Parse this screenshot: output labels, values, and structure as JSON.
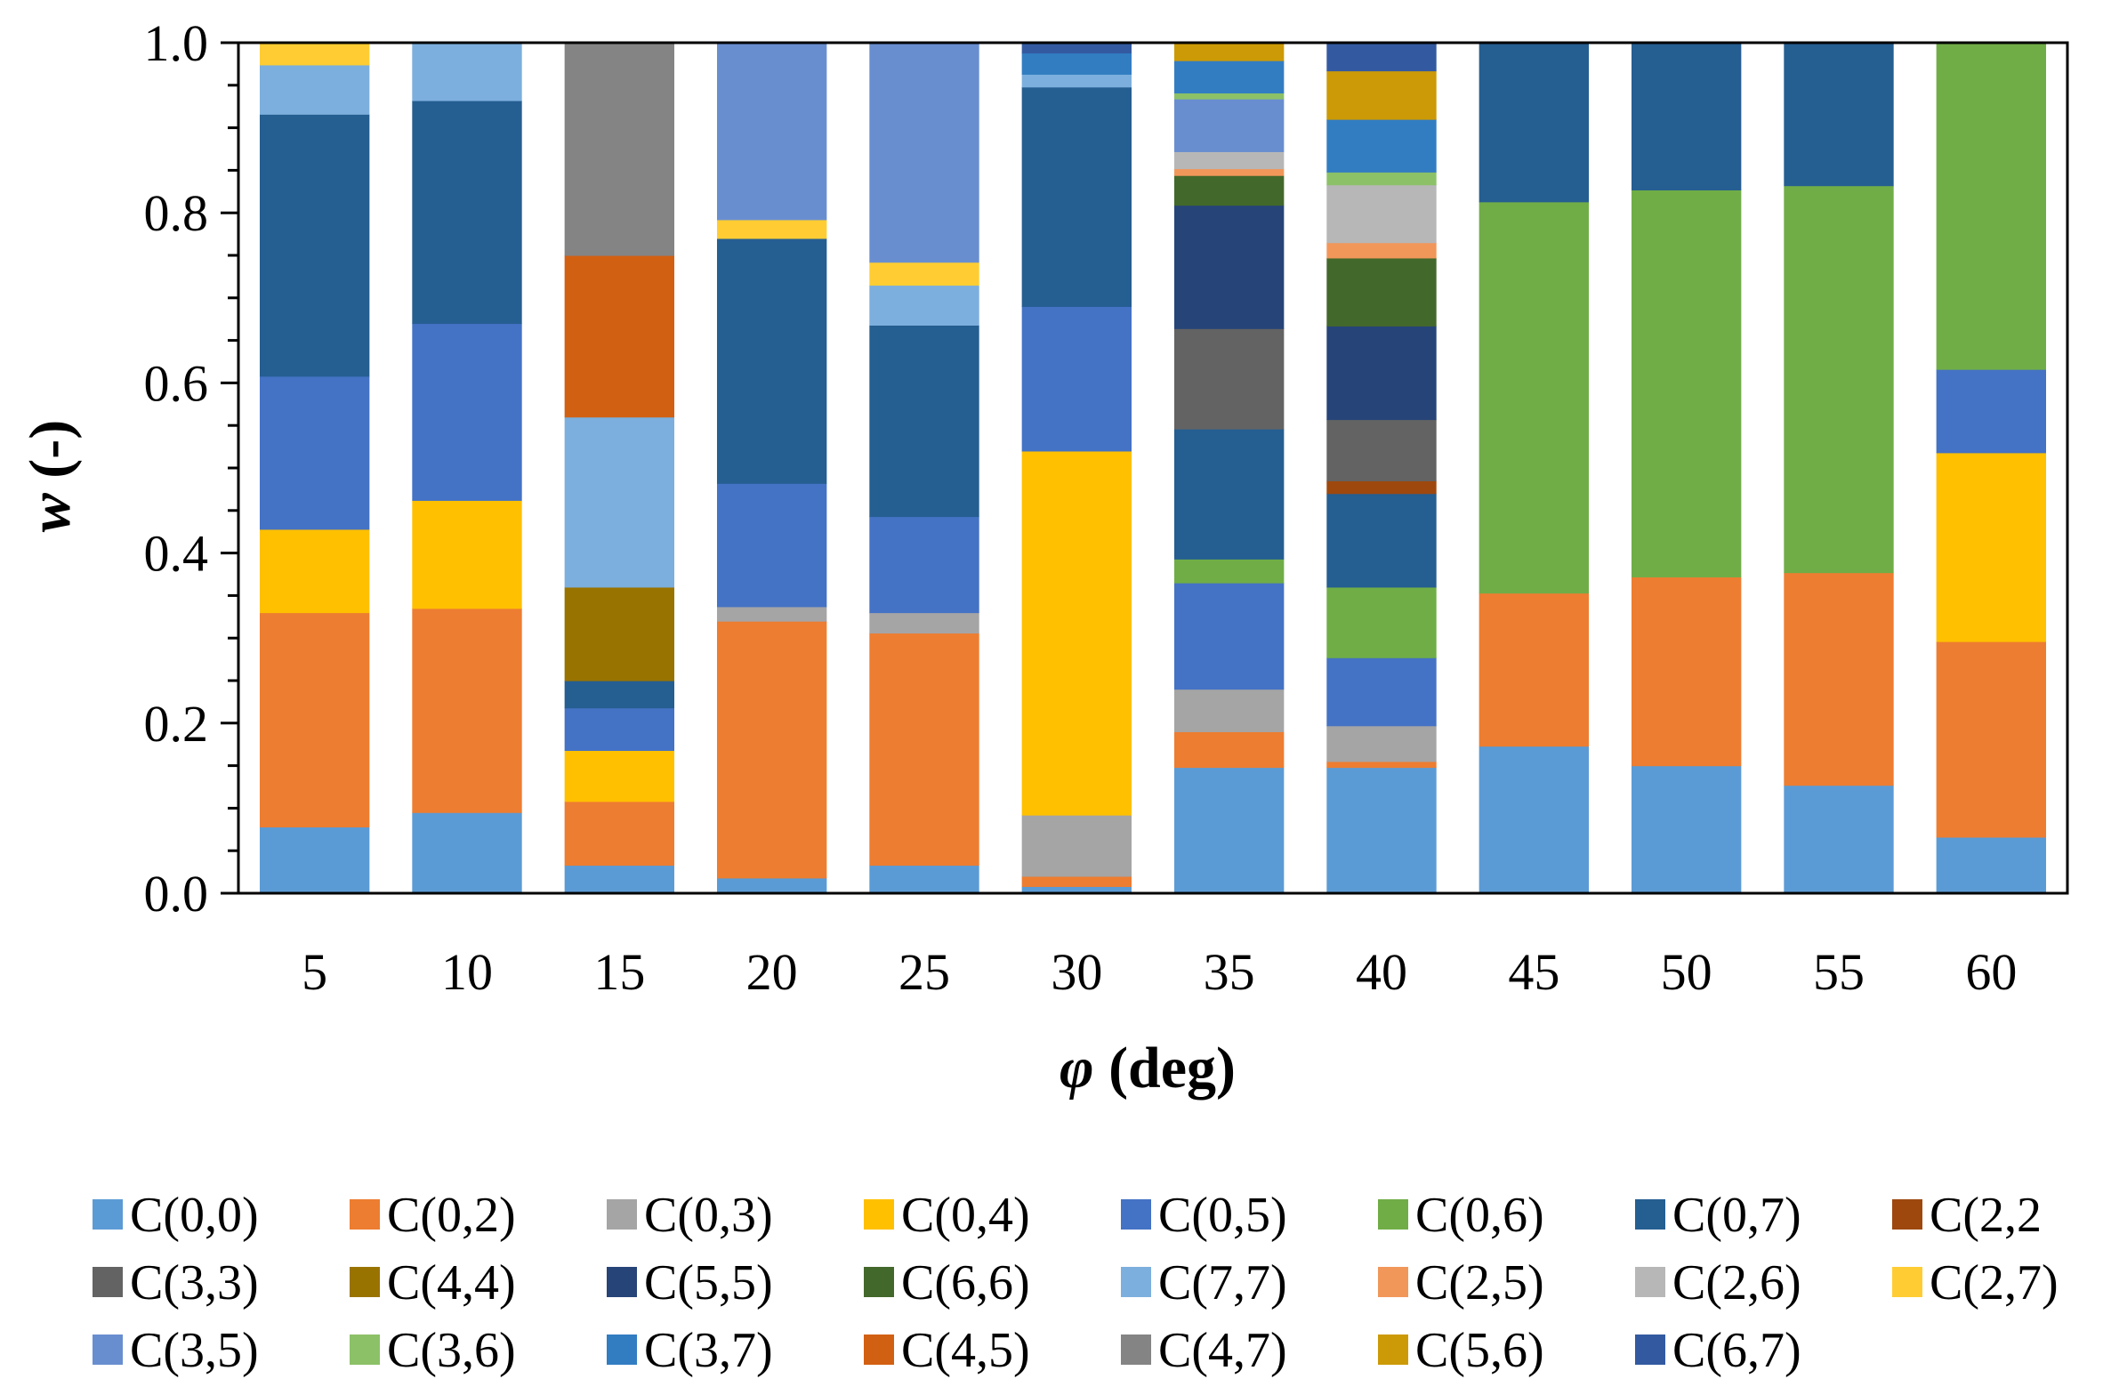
{
  "chart_data": {
    "type": "bar",
    "stacked": true,
    "ylabel_symbol": "w",
    "ylabel_unit": " (-)",
    "xlabel_symbol": "φ",
    "xlabel_unit": " (deg)",
    "ylim": [
      0,
      1
    ],
    "y_ticks": [
      "0.0",
      "0.2",
      "0.4",
      "0.6",
      "0.8",
      "1.0"
    ],
    "y_tick_values": [
      0,
      0.2,
      0.4,
      0.6,
      0.8,
      1.0
    ],
    "categories": [
      "5",
      "10",
      "15",
      "20",
      "25",
      "30",
      "35",
      "40",
      "45",
      "50",
      "55",
      "60"
    ],
    "legend_position": "bottom",
    "series": [
      {
        "name": "C(0,0)",
        "color": "#5B9BD5",
        "values": [
          0.078,
          0.095,
          0.033,
          0.018,
          0.033,
          0.008,
          0.148,
          0.148,
          0.173,
          0.15,
          0.127,
          0.066
        ]
      },
      {
        "name": "C(0,2)",
        "color": "#ED7D31",
        "values": [
          0.252,
          0.24,
          0.075,
          0.302,
          0.273,
          0.012,
          0.042,
          0.007,
          0.18,
          0.222,
          0.25,
          0.23
        ]
      },
      {
        "name": "C(0,3)",
        "color": "#A5A5A5",
        "values": [
          0,
          0,
          0,
          0.017,
          0.024,
          0.072,
          0.05,
          0.042,
          0,
          0,
          0,
          0
        ]
      },
      {
        "name": "C(0,4)",
        "color": "#FFC000",
        "values": [
          0.098,
          0.127,
          0.06,
          0,
          0,
          0.428,
          0,
          0,
          0,
          0,
          0,
          0.222
        ]
      },
      {
        "name": "C(0,5)",
        "color": "#4472C4",
        "values": [
          0.18,
          0.208,
          0.05,
          0.145,
          0.113,
          0.17,
          0.125,
          0.08,
          0,
          0,
          0,
          0.098
        ]
      },
      {
        "name": "C(0,6)",
        "color": "#70AD47",
        "values": [
          0,
          0,
          0,
          0,
          0,
          0,
          0.028,
          0.083,
          0.46,
          0.455,
          0.455,
          0.385
        ]
      },
      {
        "name": "C(0,7)",
        "color": "#255E91",
        "values": [
          0.308,
          0.262,
          0.032,
          0.288,
          0.225,
          0.258,
          0.153,
          0.11,
          0.187,
          0.173,
          0.168,
          0
        ]
      },
      {
        "name": "C(2,2",
        "color": "#9E480E",
        "values": [
          0,
          0,
          0,
          0,
          0,
          0,
          0,
          0.015,
          0,
          0,
          0,
          0
        ]
      },
      {
        "name": "C(3,3)",
        "color": "#636363",
        "values": [
          0,
          0,
          0,
          0,
          0,
          0,
          0.118,
          0.072,
          0,
          0,
          0,
          0
        ]
      },
      {
        "name": "C(4,4)",
        "color": "#997300",
        "values": [
          0,
          0,
          0.11,
          0,
          0,
          0,
          0,
          0,
          0,
          0,
          0,
          0
        ]
      },
      {
        "name": "C(5,5)",
        "color": "#264478",
        "values": [
          0,
          0,
          0,
          0,
          0,
          0,
          0.145,
          0.11,
          0,
          0,
          0,
          0
        ]
      },
      {
        "name": "C(6,6)",
        "color": "#43682B",
        "values": [
          0,
          0,
          0,
          0,
          0,
          0,
          0.035,
          0.08,
          0,
          0,
          0,
          0
        ]
      },
      {
        "name": "C(7,7)",
        "color": "#7CAFDD",
        "values": [
          0.058,
          0.068,
          0.2,
          0,
          0.047,
          0.015,
          0,
          0,
          0,
          0,
          0,
          0
        ]
      },
      {
        "name": "C(2,5)",
        "color": "#F1975A",
        "values": [
          0,
          0,
          0,
          0,
          0,
          0,
          0.008,
          0.018,
          0,
          0,
          0,
          0
        ]
      },
      {
        "name": "C(2,6)",
        "color": "#B7B7B7",
        "values": [
          0,
          0,
          0,
          0,
          0,
          0,
          0.02,
          0.068,
          0,
          0,
          0,
          0
        ]
      },
      {
        "name": "C(2,7)",
        "color": "#FFCD33",
        "values": [
          0.026,
          0,
          0,
          0.022,
          0.027,
          0,
          0,
          0,
          0,
          0,
          0,
          0
        ]
      },
      {
        "name": "C(3,5)",
        "color": "#698ED0",
        "values": [
          0,
          0,
          0,
          0.208,
          0.258,
          0,
          0.062,
          0,
          0,
          0,
          0,
          0
        ]
      },
      {
        "name": "C(3,6)",
        "color": "#8CC168",
        "values": [
          0,
          0,
          0,
          0,
          0,
          0,
          0.007,
          0.015,
          0,
          0,
          0,
          0
        ]
      },
      {
        "name": "C(3,7)",
        "color": "#327DC2",
        "values": [
          0,
          0,
          0,
          0,
          0,
          0.025,
          0.038,
          0.062,
          0,
          0,
          0,
          0
        ]
      },
      {
        "name": "C(4,5)",
        "color": "#D26012",
        "values": [
          0,
          0,
          0.19,
          0,
          0,
          0,
          0,
          0,
          0,
          0,
          0,
          0
        ]
      },
      {
        "name": "C(4,7)",
        "color": "#848484",
        "values": [
          0,
          0,
          0.25,
          0,
          0,
          0,
          0,
          0,
          0,
          0,
          0,
          0
        ]
      },
      {
        "name": "C(5,6)",
        "color": "#CC9A06",
        "values": [
          0,
          0,
          0,
          0,
          0,
          0,
          0.021,
          0.057,
          0,
          0,
          0,
          0
        ]
      },
      {
        "name": "C(6,7)",
        "color": "#335AA1",
        "values": [
          0,
          0,
          0,
          0,
          0,
          0.012,
          0,
          0.033,
          0,
          0,
          0,
          0
        ]
      }
    ]
  }
}
